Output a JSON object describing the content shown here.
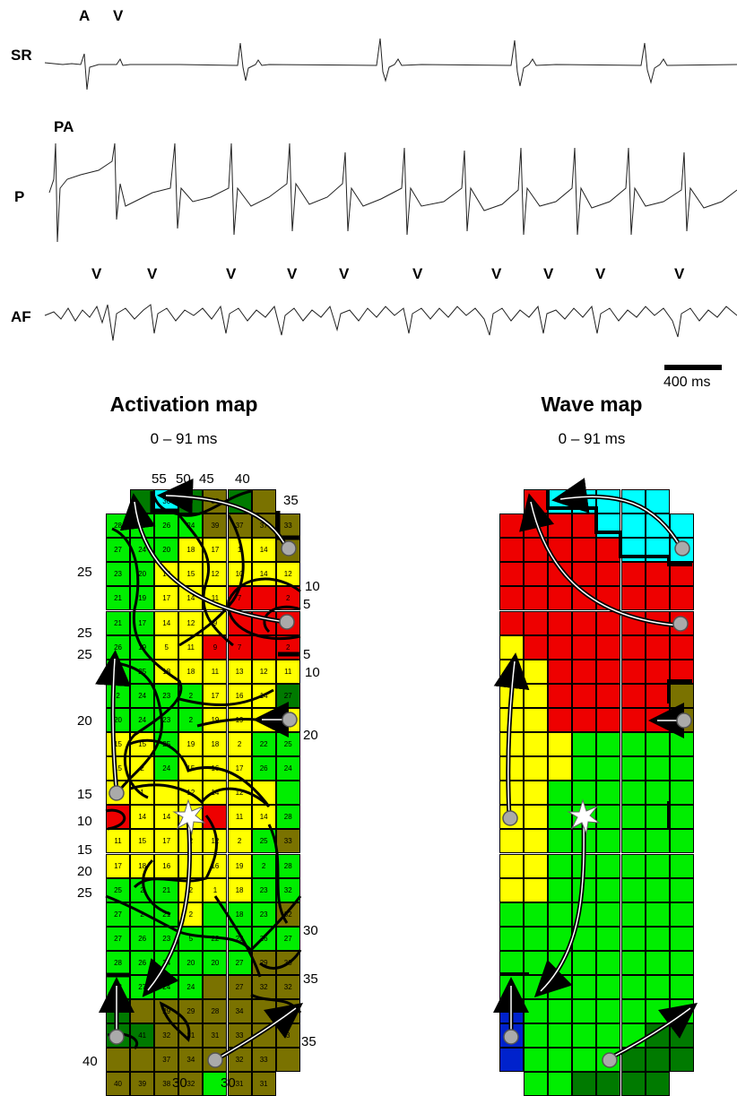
{
  "traces": {
    "sr": {
      "label": "SR",
      "markers": [
        "A",
        "V"
      ]
    },
    "p": {
      "label": "P",
      "markers": [
        "PA"
      ]
    },
    "af": {
      "label": "AF",
      "markers": [
        "V",
        "V",
        "V",
        "V",
        "V",
        "V",
        "V",
        "V",
        "V",
        "V"
      ]
    },
    "scale_bar": {
      "label": "400 ms"
    }
  },
  "activation_map": {
    "title": "Activation map",
    "range": "0 – 91 ms",
    "isochrone_labels": [
      "55",
      "50",
      "45",
      "40",
      "35",
      "25",
      "10",
      "5",
      "25",
      "25",
      "5",
      "10",
      "20",
      "20",
      "15",
      "10",
      "15",
      "20",
      "25",
      "30",
      "35",
      "40",
      "35",
      "30",
      "30"
    ]
  },
  "wave_map": {
    "title": "Wave map",
    "range": "0 – 91 ms"
  },
  "colors": {
    "red": "#ee0000",
    "yellow": "#ffff00",
    "green": "#00ee00",
    "dark_green": "#007a00",
    "olive": "#7a7200",
    "cyan": "#00ffff",
    "blue": "#0022cc",
    "marker_grey": "#aaaaaa"
  },
  "activation_grid": [
    [
      "",
      "",
      "30",
      "",
      "38",
      "",
      "",
      ""
    ],
    [
      "28",
      "2",
      "26",
      "24",
      "39",
      "37",
      "37",
      "33"
    ],
    [
      "27",
      "24",
      "20",
      "18",
      "17",
      "1",
      "14",
      ""
    ],
    [
      "23",
      "20",
      "18",
      "15",
      "12",
      "10",
      "14",
      "12"
    ],
    [
      "21",
      "19",
      "17",
      "14",
      "11",
      "7",
      "",
      "2"
    ],
    [
      "21",
      "17",
      "14",
      "12",
      "9",
      "",
      "",
      ""
    ],
    [
      "26",
      "19",
      "5",
      "11",
      "9",
      "7",
      "",
      "2"
    ],
    [
      "",
      "25",
      "18",
      "18",
      "11",
      "13",
      "12",
      "11"
    ],
    [
      "2",
      "24",
      "23",
      "2",
      "17",
      "16",
      "14",
      "27"
    ],
    [
      "20",
      "24",
      "23",
      "2",
      "19",
      "19",
      "",
      ""
    ],
    [
      "15",
      "15",
      "25",
      "19",
      "18",
      "2",
      "22",
      "25"
    ],
    [
      "15",
      "2",
      "24",
      "15",
      "16",
      "17",
      "26",
      "24"
    ],
    [
      "",
      "1",
      "",
      "12",
      "14",
      "12",
      "",
      ""
    ],
    [
      "",
      "14",
      "14",
      "",
      "",
      "11",
      "14",
      "28"
    ],
    [
      "11",
      "15",
      "17",
      "2",
      "12",
      "2",
      "25",
      "33"
    ],
    [
      "17",
      "18",
      "16",
      "",
      "16",
      "19",
      "2",
      "28"
    ],
    [
      "25",
      "2",
      "21",
      "2",
      "1",
      "18",
      "23",
      "32"
    ],
    [
      "27",
      "2",
      "21",
      "2",
      "",
      "18",
      "23",
      "32"
    ],
    [
      "27",
      "26",
      "23",
      "5",
      "22",
      "23",
      "26",
      "27"
    ],
    [
      "28",
      "26",
      "24",
      "20",
      "20",
      "27",
      "29",
      "30"
    ],
    [
      "28",
      "27",
      "24",
      "24",
      "",
      "27",
      "32",
      "32"
    ],
    [
      "",
      "",
      "29",
      "29",
      "28",
      "34",
      "",
      "36"
    ],
    [
      "",
      "41",
      "32",
      "31",
      "31",
      "33",
      "",
      "3"
    ],
    [
      "",
      "",
      "37",
      "34",
      "32",
      "32",
      "33",
      ""
    ],
    [
      "40",
      "39",
      "38",
      "32",
      "",
      "31",
      "31",
      ""
    ]
  ]
}
